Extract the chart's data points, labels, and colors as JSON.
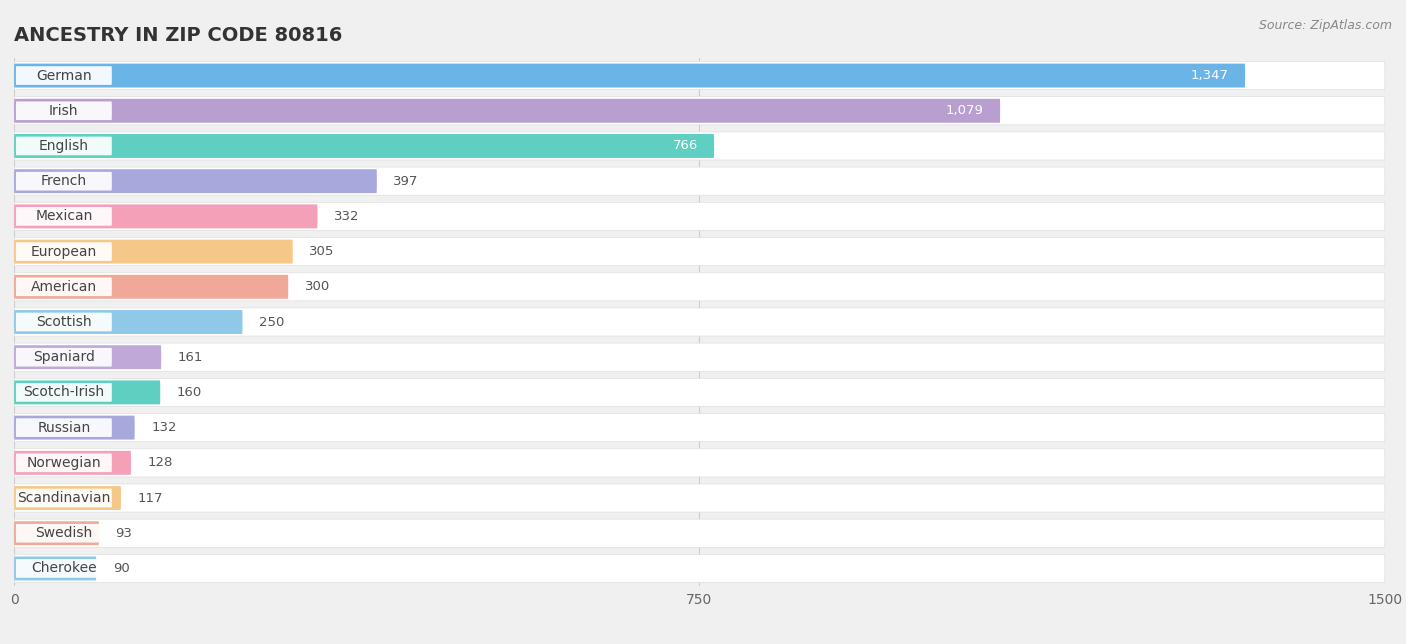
{
  "title": "ANCESTRY IN ZIP CODE 80816",
  "source": "Source: ZipAtlas.com",
  "categories": [
    "German",
    "Irish",
    "English",
    "French",
    "Mexican",
    "European",
    "American",
    "Scottish",
    "Spaniard",
    "Scotch-Irish",
    "Russian",
    "Norwegian",
    "Scandinavian",
    "Swedish",
    "Cherokee"
  ],
  "values": [
    1347,
    1079,
    766,
    397,
    332,
    305,
    300,
    250,
    161,
    160,
    132,
    128,
    117,
    93,
    90
  ],
  "colors": [
    "#6ab4e8",
    "#b89fd0",
    "#5ecfc0",
    "#a8a8dc",
    "#f4a0b8",
    "#f5c88a",
    "#f0a898",
    "#90c8e8",
    "#c0a8d8",
    "#5ecfc0",
    "#a8a8dc",
    "#f4a0b8",
    "#f5c88a",
    "#f0a898",
    "#90c8e8"
  ],
  "xlim_max": 1500,
  "xticks": [
    0,
    750,
    1500
  ],
  "background_color": "#f0f0f0",
  "row_bg": "#ffffff",
  "title_fontsize": 14,
  "source_fontsize": 9,
  "label_fontsize": 10,
  "value_fontsize": 9.5
}
